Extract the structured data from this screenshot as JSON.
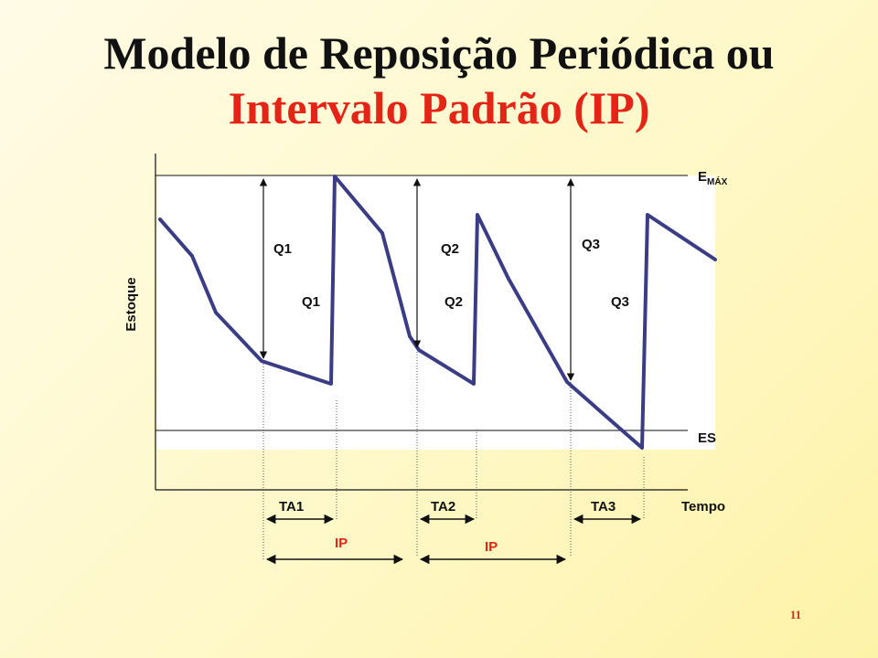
{
  "title": {
    "line1": "Modelo de Reposição Periódica ou",
    "line2": "Intervalo Padrão (IP)",
    "line1_color": "#111111",
    "line2_color": "#e32417"
  },
  "axes": {
    "y_label": "Estoque",
    "x_label": "Tempo"
  },
  "levels": {
    "max_main": "E",
    "max_sub": "MÁX",
    "safety": "ES"
  },
  "quantities": {
    "q1_upper": "Q1",
    "q1_lower": "Q1",
    "q2_upper": "Q2",
    "q2_lower": "Q2",
    "q3_upper": "Q3",
    "q3_lower": "Q3"
  },
  "lead_times": {
    "ta1": "TA1",
    "ta2": "TA2",
    "ta3": "TA3"
  },
  "intervals": {
    "ip1": "IP",
    "ip2": "IP"
  },
  "slide_number": "11",
  "colors": {
    "stock_line": "#3a3d86",
    "accent_red": "#e32417",
    "plot_background": "#ffffff"
  }
}
